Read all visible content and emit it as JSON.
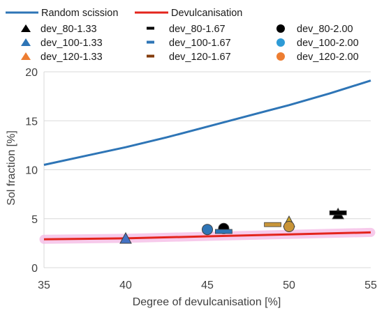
{
  "chart_data": {
    "type": "scatter",
    "title": "",
    "xlabel": "Degree of devulcanisation [%]",
    "ylabel": "Sol fraction [%]",
    "xlim": [
      35,
      55
    ],
    "ylim": [
      0,
      20
    ],
    "xticks": [
      "35",
      "40",
      "45",
      "50",
      "55"
    ],
    "yticks": [
      "0",
      "5",
      "10",
      "15",
      "20"
    ],
    "grid": "horizontal",
    "legend_position": "top",
    "lines": [
      {
        "name": "Random scission",
        "color": "#2e75b6",
        "x": [
          35,
          37.5,
          40,
          42.5,
          45,
          47.5,
          50,
          52.5,
          55
        ],
        "y": [
          10.5,
          11.4,
          12.3,
          13.3,
          14.4,
          15.5,
          16.6,
          17.8,
          19.1
        ]
      },
      {
        "name": "Devulcanisation",
        "color": "#e3241c",
        "halo": "#f4b8e4",
        "x": [
          35,
          40,
          45,
          50,
          55
        ],
        "y": [
          2.9,
          3.0,
          3.2,
          3.4,
          3.6
        ]
      }
    ],
    "series": [
      {
        "name": "dev_80-1.33",
        "marker": "triangle",
        "color": "#000000",
        "x": [
          53.0
        ],
        "y": [
          5.4
        ]
      },
      {
        "name": "dev_80-1.67",
        "marker": "dash",
        "color": "#000000",
        "x": [
          53.0
        ],
        "y": [
          5.6
        ]
      },
      {
        "name": "dev_80-2.00",
        "marker": "circle",
        "color": "#000000",
        "x": [
          46.0
        ],
        "y": [
          4.0
        ]
      },
      {
        "name": "dev_100-1.33",
        "marker": "triangle",
        "color": "#4472c4",
        "x": [
          40.0
        ],
        "y": [
          2.9
        ]
      },
      {
        "name": "dev_100-1.67",
        "marker": "dash",
        "color": "#2e75b6",
        "x": [
          46.0
        ],
        "y": [
          3.7
        ]
      },
      {
        "name": "dev_100-2.00",
        "marker": "circle",
        "color": "#2e75b6",
        "x": [
          45.0
        ],
        "y": [
          3.9
        ]
      },
      {
        "name": "dev_120-1.33",
        "marker": "triangle",
        "color": "#c9a227",
        "x": [
          50.0
        ],
        "y": [
          4.6
        ]
      },
      {
        "name": "dev_120-1.67",
        "marker": "dash",
        "color": "#c8963a",
        "x": [
          49.0
        ],
        "y": [
          4.4
        ]
      },
      {
        "name": "dev_120-2.00",
        "marker": "circle",
        "color": "#c89437",
        "x": [
          50.0
        ],
        "y": [
          4.2
        ]
      }
    ]
  },
  "legend": {
    "lines": [
      "Random scission",
      "Devulcanisation"
    ],
    "col1": [
      "dev_80-1.33",
      "dev_100-1.33",
      "dev_120-1.33"
    ],
    "col2": [
      "dev_80-1.67",
      "dev_100-1.67",
      "dev_120-1.67"
    ],
    "col3": [
      "dev_80-2.00",
      "dev_100-2.00",
      "dev_120-2.00"
    ]
  }
}
